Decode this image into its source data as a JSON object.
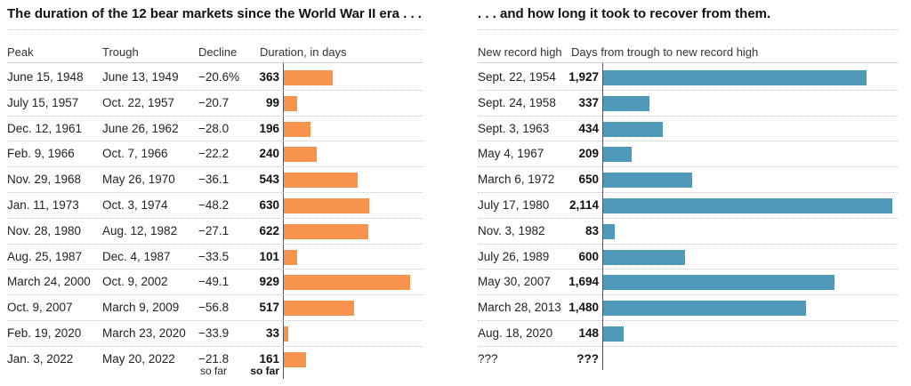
{
  "titles": {
    "left": "The duration of the 12 bear markets since the World War II era . . .",
    "right": ". . . and how long it took to recover from them."
  },
  "headers": {
    "peak": "Peak",
    "trough": "Trough",
    "decline": "Decline",
    "duration": "Duration, in days",
    "record": "New record high",
    "recovery": "Days from trough to new record high"
  },
  "chart_data": [
    {
      "type": "bar",
      "orientation": "horizontal",
      "title": "Duration, in days",
      "colors": {
        "bars": "#f7934c",
        "axis": "#555555"
      },
      "rows": [
        {
          "peak": "June 15, 1948",
          "trough": "June 13, 1949",
          "decline": "−20.6%",
          "value": 363,
          "label": "363"
        },
        {
          "peak": "July 15, 1957",
          "trough": "Oct. 22, 1957",
          "decline": "−20.7",
          "value": 99,
          "label": "99"
        },
        {
          "peak": "Dec. 12, 1961",
          "trough": "June 26, 1962",
          "decline": "−28.0",
          "value": 196,
          "label": "196"
        },
        {
          "peak": "Feb. 9, 1966",
          "trough": "Oct. 7, 1966",
          "decline": "−22.2",
          "value": 240,
          "label": "240"
        },
        {
          "peak": "Nov. 29, 1968",
          "trough": "May 26, 1970",
          "decline": "−36.1",
          "value": 543,
          "label": "543"
        },
        {
          "peak": "Jan. 11, 1973",
          "trough": "Oct. 3, 1974",
          "decline": "−48.2",
          "value": 630,
          "label": "630"
        },
        {
          "peak": "Nov. 28, 1980",
          "trough": "Aug. 12, 1982",
          "decline": "−27.1",
          "value": 622,
          "label": "622"
        },
        {
          "peak": "Aug. 25, 1987",
          "trough": "Dec. 4, 1987",
          "decline": "−33.5",
          "value": 101,
          "label": "101"
        },
        {
          "peak": "March 24, 2000",
          "trough": "Oct. 9, 2002",
          "decline": "−49.1",
          "value": 929,
          "label": "929"
        },
        {
          "peak": "Oct. 9, 2007",
          "trough": "March 9, 2009",
          "decline": "−56.8",
          "value": 517,
          "label": "517"
        },
        {
          "peak": "Feb. 19, 2020",
          "trough": "March 23, 2020",
          "decline": "−33.9",
          "value": 33,
          "label": "33"
        },
        {
          "peak": "Jan. 3, 2022",
          "trough": "May 20, 2022",
          "decline": "−21.8",
          "decline_note": "so far",
          "value": 161,
          "label": "161",
          "label_note": "so far"
        }
      ]
    },
    {
      "type": "bar",
      "orientation": "horizontal",
      "title": "Days from trough to new record high",
      "colors": {
        "bars": "#4e9ab8",
        "axis": "#555555"
      },
      "rows": [
        {
          "record": "Sept. 22, 1954",
          "value": 1927,
          "label": "1,927"
        },
        {
          "record": "Sept. 24, 1958",
          "value": 337,
          "label": "337"
        },
        {
          "record": "Sept. 3, 1963",
          "value": 434,
          "label": "434"
        },
        {
          "record": "May 4, 1967",
          "value": 209,
          "label": "209"
        },
        {
          "record": "March 6, 1972",
          "value": 650,
          "label": "650"
        },
        {
          "record": "July 17, 1980",
          "value": 2114,
          "label": "2,114"
        },
        {
          "record": "Nov. 3, 1982",
          "value": 83,
          "label": "83"
        },
        {
          "record": "July 26, 1989",
          "value": 600,
          "label": "600"
        },
        {
          "record": "May 30, 2007",
          "value": 1694,
          "label": "1,694"
        },
        {
          "record": "March 28, 2013",
          "value": 1480,
          "label": "1,480"
        },
        {
          "record": "Aug. 18, 2020",
          "value": 148,
          "label": "148"
        },
        {
          "record": "???",
          "value": null,
          "label": "???"
        }
      ]
    }
  ]
}
